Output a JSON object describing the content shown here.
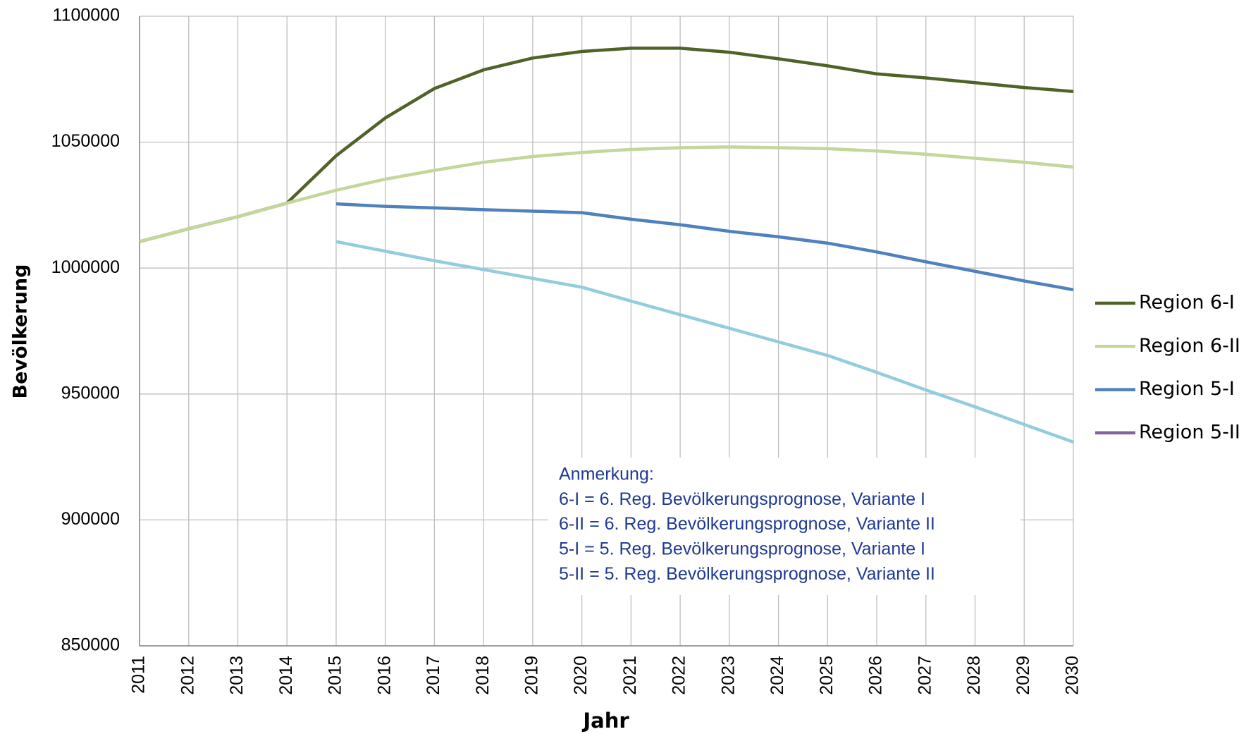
{
  "chart_data": {
    "type": "line",
    "x": [
      2011,
      2012,
      2013,
      2014,
      2015,
      2016,
      2017,
      2018,
      2019,
      2020,
      2021,
      2022,
      2023,
      2024,
      2025,
      2026,
      2027,
      2028,
      2029,
      2030
    ],
    "xlim": [
      2011,
      2030
    ],
    "xticks": [
      2011,
      2012,
      2013,
      2014,
      2015,
      2016,
      2017,
      2018,
      2019,
      2020,
      2021,
      2022,
      2023,
      2024,
      2025,
      2026,
      2027,
      2028,
      2029,
      2030
    ],
    "ylim": [
      850000,
      1100000
    ],
    "yticks": [
      850000,
      900000,
      950000,
      1000000,
      1050000,
      1100000
    ],
    "x_label": "Jahr",
    "y_label": "Bevölkerung",
    "grid": true,
    "legend": "right",
    "series": [
      {
        "name": "Region 6-I",
        "color": "#4f6228",
        "values": [
          1010500,
          1015600,
          1020400,
          1025800,
          1044600,
          1059600,
          1071300,
          1078700,
          1083400,
          1086000,
          1087300,
          1087300,
          1085700,
          1083100,
          1080300,
          1077100,
          1075500,
          1073600,
          1071700,
          1070100
        ]
      },
      {
        "name": "Region 6-II",
        "color": "#c3d69b",
        "values": [
          1010500,
          1015600,
          1020400,
          1025800,
          1030900,
          1035300,
          1038800,
          1042000,
          1044300,
          1045900,
          1047100,
          1047800,
          1048100,
          1047800,
          1047400,
          1046500,
          1045200,
          1043600,
          1042000,
          1040100
        ]
      },
      {
        "name": "Region 5-I",
        "color": "#4f81bd",
        "values": [
          null,
          null,
          null,
          null,
          1025500,
          1024500,
          1023900,
          1023200,
          1022600,
          1022000,
          1019400,
          1017200,
          1014600,
          1012400,
          1009900,
          1006400,
          1002500,
          998700,
          994900,
          991400
        ]
      },
      {
        "name": "Region 5-II",
        "color": "#93cddd",
        "legend_color": "#8064a2",
        "values": [
          null,
          null,
          null,
          null,
          1010500,
          1006700,
          1002900,
          999400,
          995900,
          992400,
          986900,
          981500,
          976100,
          970700,
          965300,
          958600,
          951600,
          944900,
          937900,
          930900
        ]
      }
    ],
    "annotation": [
      "Anmerkung:",
      "6-I = 6. Reg. Bevölkerungsprognose, Variante I",
      "6-II = 6. Reg. Bevölkerungsprognose, Variante II",
      "5-I = 5. Reg. Bevölkerungsprognose, Variante I",
      "5-II = 5. Reg. Bevölkerungsprognose, Variante II"
    ]
  }
}
